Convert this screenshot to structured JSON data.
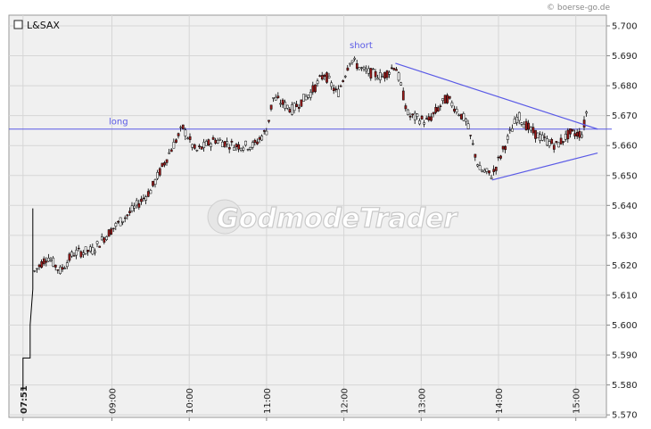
{
  "credit": "© boerse-go.de",
  "watermark": "GodmodeTrader",
  "chart_data": {
    "type": "candlestick",
    "legend": "L&SAX",
    "y_ticks": [
      "5.700",
      "5.690",
      "5.680",
      "5.670",
      "5.660",
      "5.650",
      "5.640",
      "5.630",
      "5.620",
      "5.610",
      "5.600",
      "5.590",
      "5.580",
      "5.570"
    ],
    "ylim": [
      5.569,
      5.703
    ],
    "x_start_label": "07:51",
    "x_ticks": [
      "09:00",
      "10:00",
      "11:00",
      "12:00",
      "13:00",
      "14:00",
      "15:00"
    ],
    "annotations": [
      {
        "label": "long",
        "type": "horizontal-line",
        "y": 5.6655
      },
      {
        "label": "short",
        "type": "marker",
        "time": "12:10",
        "y": 5.6895
      }
    ],
    "trendlines": [
      {
        "from": {
          "time": "12:40",
          "y": 5.6875
        },
        "to": {
          "time": "15:10",
          "y": 5.6655
        }
      },
      {
        "from": {
          "time": "13:55",
          "y": 5.6485
        },
        "to": {
          "time": "15:10",
          "y": 5.6575
        }
      }
    ],
    "series": [
      {
        "time": "07:51",
        "y": 5.578
      },
      {
        "time": "08:00",
        "y": 5.618
      },
      {
        "time": "08:10",
        "y": 5.623
      },
      {
        "time": "08:20",
        "y": 5.618
      },
      {
        "time": "08:30",
        "y": 5.624
      },
      {
        "time": "08:45",
        "y": 5.625
      },
      {
        "time": "09:00",
        "y": 5.632
      },
      {
        "time": "09:15",
        "y": 5.638
      },
      {
        "time": "09:30",
        "y": 5.645
      },
      {
        "time": "09:45",
        "y": 5.658
      },
      {
        "time": "09:55",
        "y": 5.666
      },
      {
        "time": "10:05",
        "y": 5.658
      },
      {
        "time": "10:20",
        "y": 5.662
      },
      {
        "time": "10:35",
        "y": 5.66
      },
      {
        "time": "10:50",
        "y": 5.66
      },
      {
        "time": "11:00",
        "y": 5.665
      },
      {
        "time": "11:05",
        "y": 5.676
      },
      {
        "time": "11:20",
        "y": 5.672
      },
      {
        "time": "11:35",
        "y": 5.678
      },
      {
        "time": "11:45",
        "y": 5.684
      },
      {
        "time": "11:55",
        "y": 5.677
      },
      {
        "time": "12:05",
        "y": 5.689
      },
      {
        "time": "12:15",
        "y": 5.685
      },
      {
        "time": "12:30",
        "y": 5.683
      },
      {
        "time": "12:40",
        "y": 5.687
      },
      {
        "time": "12:50",
        "y": 5.67
      },
      {
        "time": "13:05",
        "y": 5.668
      },
      {
        "time": "13:20",
        "y": 5.676
      },
      {
        "time": "13:35",
        "y": 5.668
      },
      {
        "time": "13:45",
        "y": 5.652
      },
      {
        "time": "13:55",
        "y": 5.65
      },
      {
        "time": "14:05",
        "y": 5.66
      },
      {
        "time": "14:15",
        "y": 5.67
      },
      {
        "time": "14:25",
        "y": 5.665
      },
      {
        "time": "14:35",
        "y": 5.662
      },
      {
        "time": "14:45",
        "y": 5.66
      },
      {
        "time": "14:55",
        "y": 5.664
      },
      {
        "time": "15:05",
        "y": 5.664
      },
      {
        "time": "15:10",
        "y": 5.675
      }
    ]
  }
}
